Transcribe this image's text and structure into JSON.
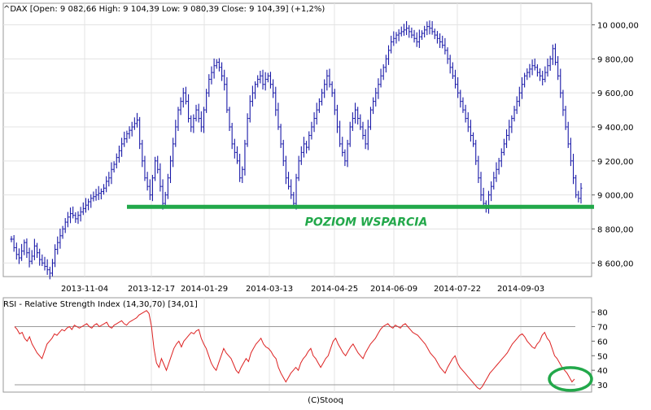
{
  "chart_data": [
    {
      "type": "ohlc",
      "title": "^DAX [Open: 9 082,66  High: 9 104,39  Low: 9 080,39  Close: 9 104,39] (+1,2%)",
      "x_tick_labels": [
        "2013-11-04",
        "2013-12-17",
        "2014-01-29",
        "2014-03-13",
        "2014-04-25",
        "2014-06-09",
        "2014-07-22",
        "2014-09-03"
      ],
      "y_tick_labels": [
        "10 000,00",
        "9 800,00",
        "9 600,00",
        "9 400,00",
        "9 200,00",
        "9 000,00",
        "8 800,00",
        "8 600,00"
      ],
      "y_ticks": [
        10000,
        9800,
        9600,
        9400,
        9200,
        9000,
        8800,
        8600
      ],
      "ylim": [
        8520,
        10060
      ],
      "grid": true,
      "series": [
        {
          "color": "#1a1aa8",
          "closes": [
            8740,
            8690,
            8650,
            8630,
            8670,
            8720,
            8660,
            8610,
            8640,
            8700,
            8660,
            8620,
            8600,
            8580,
            8560,
            8540,
            8600,
            8680,
            8720,
            8760,
            8800,
            8840,
            8870,
            8890,
            8880,
            8860,
            8880,
            8900,
            8920,
            8940,
            8960,
            8980,
            8990,
            9000,
            9010,
            9020,
            9040,
            9080,
            9100,
            9150,
            9180,
            9220,
            9260,
            9300,
            9330,
            9360,
            9380,
            9400,
            9420,
            9440,
            9300,
            9200,
            9100,
            9050,
            9000,
            9100,
            9200,
            9150,
            9050,
            8950,
            9000,
            9100,
            9200,
            9300,
            9400,
            9500,
            9550,
            9600,
            9550,
            9450,
            9400,
            9450,
            9500,
            9450,
            9400,
            9500,
            9600,
            9680,
            9720,
            9760,
            9780,
            9750,
            9700,
            9650,
            9500,
            9400,
            9300,
            9250,
            9200,
            9100,
            9150,
            9300,
            9450,
            9550,
            9600,
            9650,
            9680,
            9700,
            9650,
            9680,
            9700,
            9650,
            9600,
            9500,
            9400,
            9300,
            9200,
            9100,
            9050,
            9000,
            8950,
            9100,
            9200,
            9250,
            9300,
            9280,
            9350,
            9400,
            9450,
            9500,
            9550,
            9600,
            9650,
            9700,
            9650,
            9600,
            9500,
            9400,
            9300,
            9250,
            9200,
            9300,
            9400,
            9450,
            9500,
            9450,
            9400,
            9350,
            9300,
            9400,
            9500,
            9550,
            9600,
            9650,
            9700,
            9750,
            9800,
            9850,
            9900,
            9920,
            9940,
            9950,
            9960,
            9970,
            9980,
            9960,
            9940,
            9920,
            9900,
            9930,
            9950,
            9970,
            9990,
            9980,
            9960,
            9940,
            9920,
            9900,
            9880,
            9850,
            9800,
            9750,
            9700,
            9650,
            9600,
            9550,
            9500,
            9450,
            9400,
            9350,
            9300,
            9200,
            9100,
            9000,
            8950,
            8920,
            9000,
            9050,
            9100,
            9150,
            9200,
            9250,
            9300,
            9350,
            9400,
            9450,
            9500,
            9550,
            9600,
            9650,
            9700,
            9720,
            9740,
            9760,
            9750,
            9720,
            9700,
            9680,
            9720,
            9760,
            9800,
            9860,
            9780,
            9700,
            9600,
            9500,
            9400,
            9300,
            9200,
            9100,
            9000,
            8980,
            9040
          ]
        }
      ],
      "annotation": {
        "text": "POZIOM WSPARCIA",
        "value": 8930,
        "color": "#22a84a"
      }
    },
    {
      "type": "line",
      "title": "RSI - Relative Strength Index (14,30,70) [34,01]",
      "y_tick_labels": [
        "80",
        "70",
        "60",
        "50",
        "40",
        "30"
      ],
      "y_ticks": [
        80,
        70,
        60,
        50,
        40,
        30
      ],
      "ylim": [
        25,
        82
      ],
      "reference_lines": [
        70,
        30
      ],
      "series": [
        {
          "color": "#dd2222",
          "values": [
            70,
            68,
            65,
            66,
            62,
            60,
            63,
            58,
            55,
            52,
            50,
            48,
            53,
            58,
            60,
            62,
            65,
            64,
            66,
            68,
            67,
            69,
            70,
            68,
            71,
            70,
            69,
            70,
            71,
            72,
            70,
            69,
            71,
            72,
            70,
            71,
            72,
            73,
            70,
            69,
            71,
            72,
            73,
            74,
            72,
            71,
            73,
            74,
            75,
            76,
            78,
            79,
            80,
            81,
            79,
            70,
            55,
            45,
            42,
            48,
            44,
            40,
            45,
            50,
            55,
            58,
            60,
            56,
            60,
            62,
            64,
            66,
            65,
            67,
            68,
            62,
            58,
            55,
            50,
            45,
            42,
            40,
            45,
            50,
            55,
            52,
            50,
            48,
            44,
            40,
            38,
            42,
            45,
            48,
            46,
            52,
            55,
            58,
            60,
            62,
            58,
            56,
            55,
            53,
            50,
            48,
            42,
            38,
            35,
            32,
            35,
            38,
            40,
            42,
            40,
            45,
            48,
            50,
            53,
            55,
            50,
            48,
            45,
            42,
            45,
            48,
            50,
            55,
            60,
            62,
            58,
            55,
            52,
            50,
            53,
            56,
            58,
            55,
            52,
            50,
            48,
            52,
            55,
            58,
            60,
            62,
            65,
            68,
            70,
            71,
            72,
            70,
            69,
            71,
            70,
            69,
            71,
            72,
            70,
            68,
            66,
            65,
            64,
            62,
            60,
            58,
            55,
            52,
            50,
            48,
            45,
            42,
            40,
            38,
            42,
            45,
            48,
            50,
            45,
            42,
            40,
            38,
            36,
            34,
            32,
            30,
            28,
            27,
            29,
            32,
            35,
            38,
            40,
            42,
            44,
            46,
            48,
            50,
            52,
            55,
            58,
            60,
            62,
            64,
            65,
            63,
            60,
            58,
            56,
            55,
            58,
            60,
            64,
            66,
            62,
            60,
            55,
            50,
            48,
            45,
            42,
            40,
            38,
            35,
            32,
            34
          ]
        }
      ]
    }
  ],
  "footer": {
    "copyright": "(C)Stooq"
  }
}
